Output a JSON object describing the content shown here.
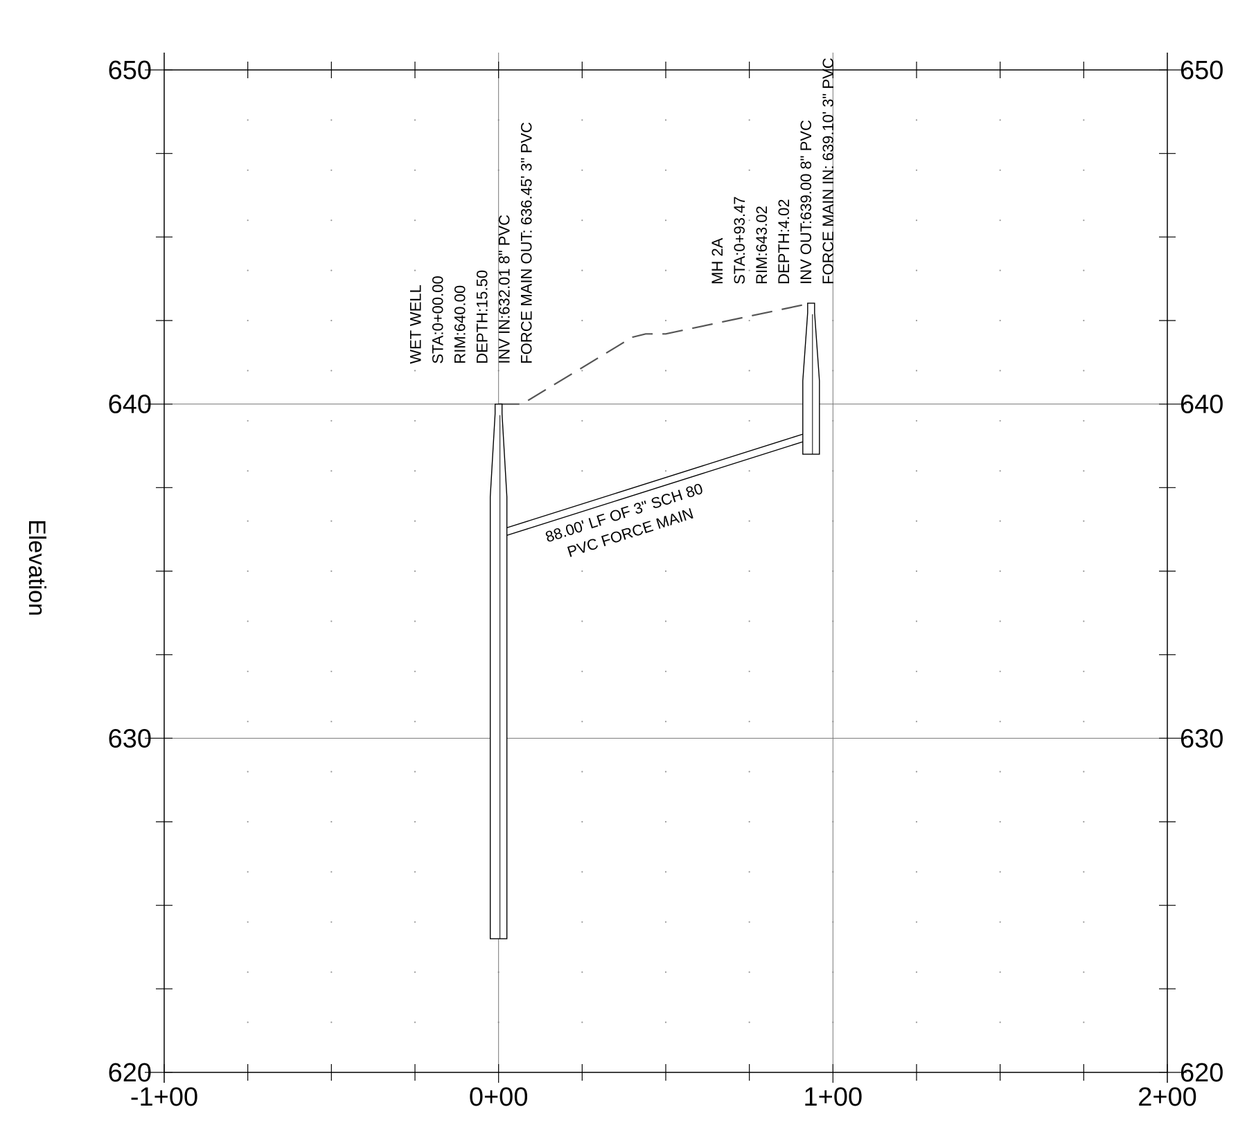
{
  "chart_data": {
    "type": "profile",
    "ylabel": "Elevation",
    "xlim": [
      -100,
      200
    ],
    "ylim": [
      620,
      650
    ],
    "x_tick_labels": [
      "-1+00",
      "0+00",
      "1+00",
      "2+00"
    ],
    "y_tick_labels": [
      "620",
      "630",
      "640",
      "650"
    ],
    "structures": [
      {
        "station": 0,
        "rim": 640.0,
        "bottom": 624.0,
        "label_lines": [
          "WET WELL",
          "STA:0+00.00",
          "RIM:640.00",
          "DEPTH:15.50",
          "INV IN:632.01 8\" PVC",
          "FORCE MAIN OUT: 636.45' 3\" PVC"
        ]
      },
      {
        "station": 93.47,
        "rim": 643.02,
        "bottom": 638.5,
        "label_lines": [
          "MH 2A",
          "STA:0+93.47",
          "RIM:643.02",
          "DEPTH:4.02",
          "INV OUT:639.00 8\" PVC",
          "FORCE MAIN IN: 639.10' 3\" PVC"
        ]
      }
    ],
    "ground_profile": [
      {
        "x": 0,
        "y": 640.0
      },
      {
        "x": 7,
        "y": 640.0
      },
      {
        "x": 40,
        "y": 642.0
      },
      {
        "x": 44,
        "y": 642.1
      },
      {
        "x": 50,
        "y": 642.1
      },
      {
        "x": 93.47,
        "y": 643.02
      }
    ],
    "pipe": {
      "start": {
        "x": 2.5,
        "y": 636.3
      },
      "end": {
        "x": 91,
        "y": 639.1
      },
      "label_lines": [
        "88.00' LF OF 3\" SCH 80",
        "PVC FORCE MAIN"
      ]
    }
  }
}
